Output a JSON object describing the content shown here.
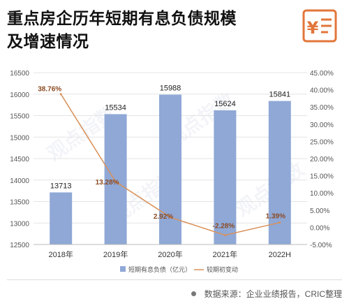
{
  "header": {
    "title_line1": "重点房企历年短期有息负债规模",
    "title_line2": "及增速情况",
    "logo_icon": "receipt-yen-icon",
    "logo_color": "#e2763a"
  },
  "chart_data": {
    "type": "bar",
    "categories": [
      "2018年",
      "2019年",
      "2020年",
      "2021年",
      "2022H"
    ],
    "series": [
      {
        "name": "短期有息负债（亿元）",
        "kind": "bar",
        "axis": "left",
        "color": "#8fa8d6",
        "values": [
          13713,
          15534,
          15988,
          15624,
          15841
        ],
        "labels": [
          "13713",
          "15534",
          "15988",
          "15624",
          "15841"
        ]
      },
      {
        "name": "较期初变动",
        "kind": "line",
        "axis": "right",
        "color": "#d9915a",
        "values": [
          38.76,
          13.28,
          2.92,
          -2.28,
          1.39
        ],
        "labels": [
          "38.76%",
          "13.28%",
          "2.92%",
          "-2.28%",
          "1.39%"
        ]
      }
    ],
    "y_left": {
      "lim": [
        12500,
        16500
      ],
      "ticks": [
        "12500",
        "13000",
        "13500",
        "14000",
        "14500",
        "15000",
        "15500",
        "16000",
        "16500"
      ]
    },
    "y_right": {
      "lim": [
        -5,
        45
      ],
      "ticks": [
        "-5.00%",
        "0.00%",
        "5.00%",
        "10.00%",
        "15.00%",
        "20.00%",
        "25.00%",
        "30.00%",
        "35.00%",
        "40.00%",
        "45.00%"
      ]
    },
    "legend_position": "bottom",
    "grid": true,
    "label_color": "#8b4a22"
  },
  "footer": {
    "source": "数据来源：企业业绩报告，CRIC整理"
  }
}
